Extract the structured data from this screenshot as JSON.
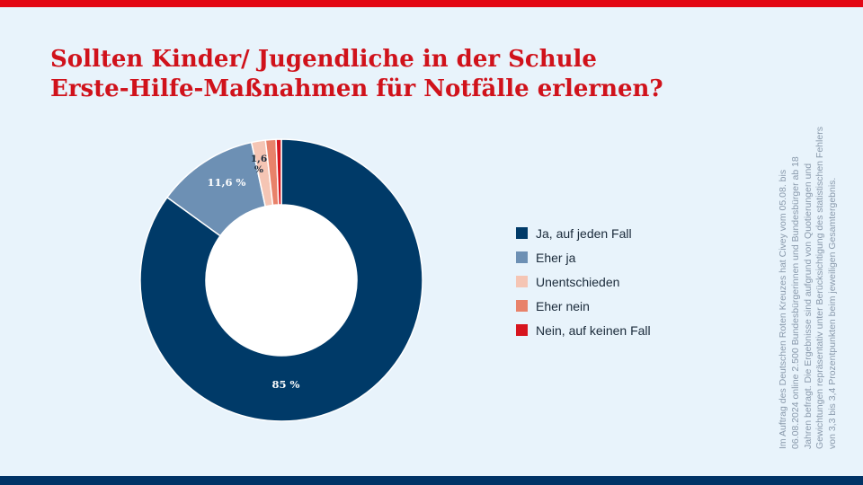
{
  "title_lines": [
    "Sollten Kinder/ Jugendliche in der Schule",
    "Erste-Hilfe-Maßnahmen für Notfälle erlernen?"
  ],
  "footnote": "Im Auftrag des Deutschen Roten Kreuzes hat Civey vom 05.08. bis 06.08.2024 online 2.500 Bundesbürgerinnen und Bundesbürger ab 18 Jahren befragt. Die Ergebnisse sind aufgrund von Quotierungen und Gewichtungen repräsentativ unter Berücksichtigung des statistischen Fehlers von 3,3 bis 3,4 Prozentpunkten beim jeweiligen Gesamtergebnis.",
  "colors": {
    "accent": "#e30613",
    "navy": "#003366",
    "background": "#e8f3fb",
    "title": "#d0121b"
  },
  "chart_data": {
    "type": "pie",
    "variant": "donut",
    "start": "12 o'clock",
    "direction": "clockwise",
    "legend_position": "right",
    "unit": "%",
    "categories": [
      "Ja, auf jeden Fall",
      "Eher ja",
      "Unentschieden",
      "Eher nein",
      "Nein, auf keinen Fall"
    ],
    "values": [
      85,
      11.6,
      1.6,
      1.2,
      0.6
    ],
    "data_labels": [
      "85 %",
      "11,6 %",
      "1,6 %",
      "",
      ""
    ],
    "colors": [
      "#003a68",
      "#6d90b4",
      "#f5c5b4",
      "#e8826a",
      "#d7141e"
    ]
  }
}
